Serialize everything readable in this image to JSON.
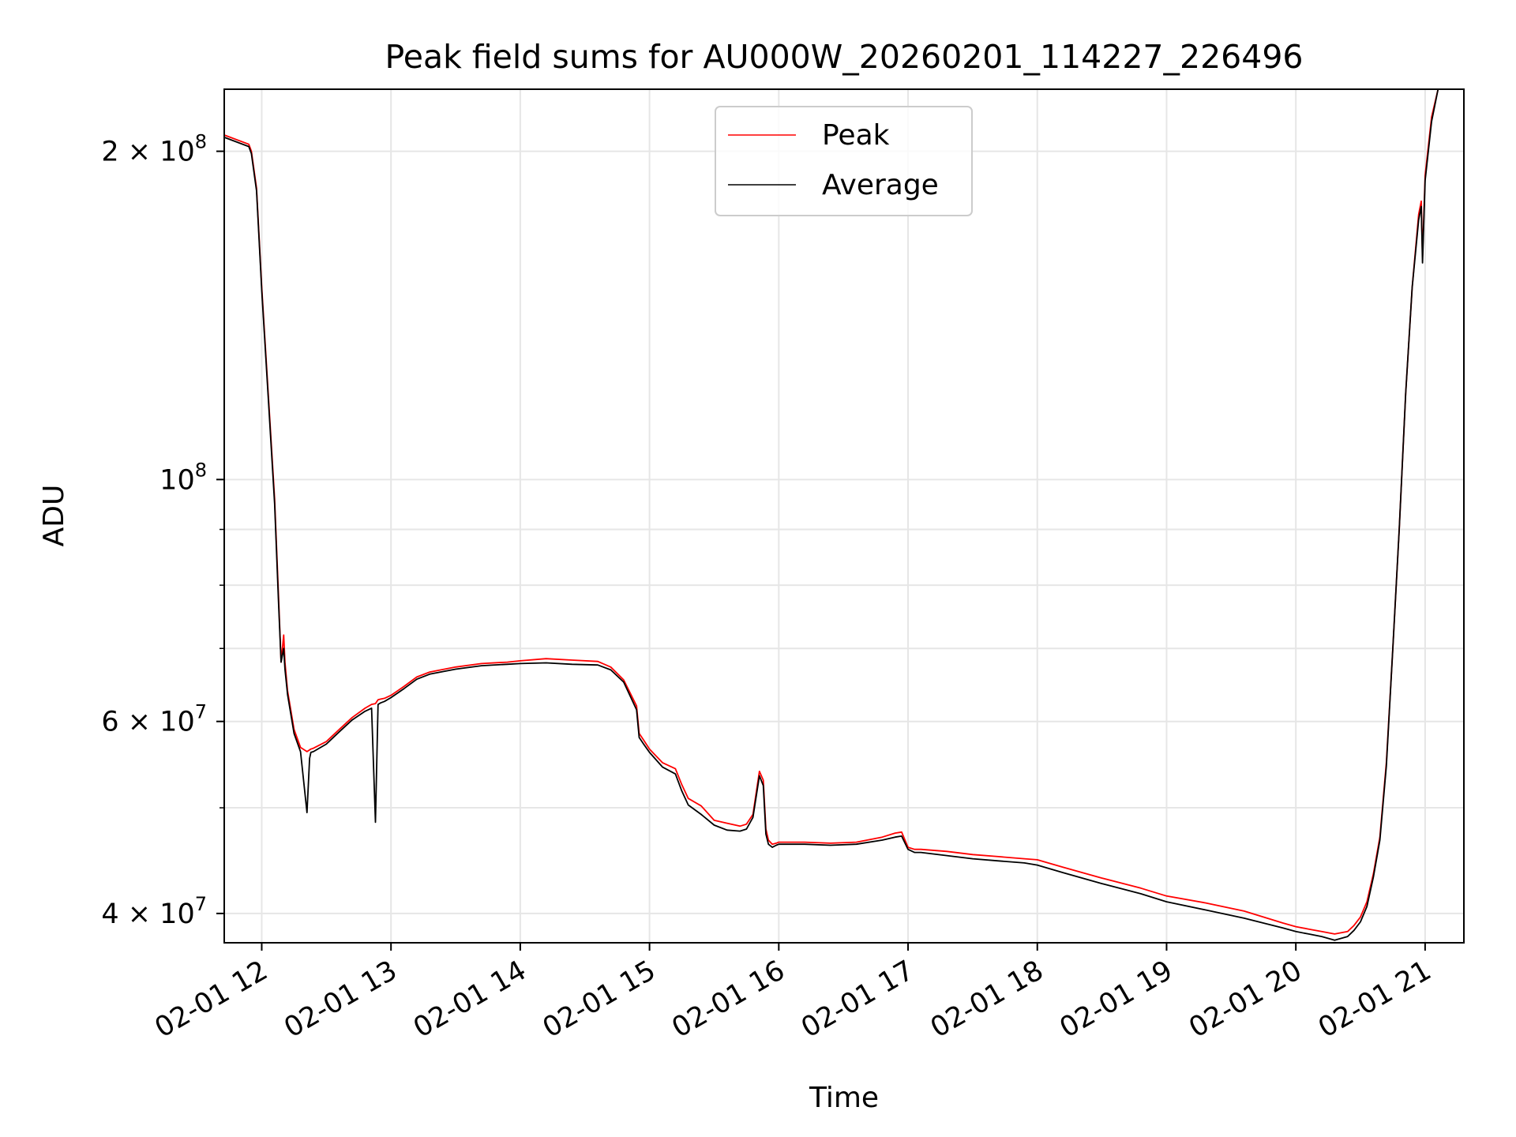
{
  "chart_data": {
    "type": "line",
    "title": "Peak field sums for AU000W_20260201_114227_226496",
    "xlabel": "Time",
    "ylabel": "ADU",
    "yscale": "log",
    "grid": true,
    "legend_placement": "upper center",
    "x_axis": {
      "unit": "hours on 2026-02-01",
      "xlim": [
        11.71,
        21.3
      ],
      "ticks": [
        12,
        13,
        14,
        15,
        16,
        17,
        18,
        19,
        20,
        21
      ],
      "tick_labels": [
        "02-01 12",
        "02-01 13",
        "02-01 14",
        "02-01 15",
        "02-01 16",
        "02-01 17",
        "02-01 18",
        "02-01 19",
        "02-01 20",
        "02-01 21"
      ]
    },
    "y_axis": {
      "ylim": [
        37600000,
        228000000
      ],
      "major_ticks": [
        40000000,
        60000000,
        100000000,
        200000000
      ],
      "major_tick_labels": [
        {
          "base": "4 × 10",
          "exp": "7"
        },
        {
          "base": "6 × 10",
          "exp": "7"
        },
        {
          "base": "10",
          "exp": "8"
        },
        {
          "base": "2 × 10",
          "exp": "8"
        }
      ],
      "minor_ticks": [
        50000000,
        70000000,
        80000000,
        90000000
      ]
    },
    "series": [
      {
        "name": "Peak",
        "color": "#ff0000",
        "x": [
          11.71,
          11.9,
          11.92,
          11.96,
          12.0,
          12.05,
          12.1,
          12.13,
          12.15,
          12.17,
          12.18,
          12.2,
          12.25,
          12.3,
          12.35,
          12.37,
          12.38,
          12.4,
          12.5,
          12.6,
          12.7,
          12.8,
          12.85,
          12.88,
          12.9,
          12.92,
          12.95,
          13.0,
          13.1,
          13.2,
          13.3,
          13.5,
          13.7,
          13.9,
          14.0,
          14.2,
          14.4,
          14.6,
          14.7,
          14.8,
          14.9,
          14.92,
          14.95,
          15.0,
          15.1,
          15.2,
          15.25,
          15.3,
          15.4,
          15.5,
          15.6,
          15.7,
          15.75,
          15.8,
          15.85,
          15.88,
          15.9,
          15.92,
          15.95,
          15.98,
          16.0,
          16.2,
          16.4,
          16.6,
          16.8,
          16.9,
          16.95,
          17.0,
          17.05,
          17.1,
          17.3,
          17.5,
          17.7,
          17.9,
          18.0,
          18.2,
          18.5,
          18.8,
          19.0,
          19.3,
          19.6,
          19.9,
          20.0,
          20.1,
          20.2,
          20.3,
          20.4,
          20.45,
          20.5,
          20.55,
          20.6,
          20.65,
          20.7,
          20.75,
          20.8,
          20.85,
          20.9,
          20.95,
          20.97,
          20.98,
          21.0,
          21.05,
          21.1,
          21.13
        ],
        "y": [
          207000000,
          203000000,
          200000000,
          185000000,
          150000000,
          120000000,
          96000000,
          78000000,
          68000000,
          72000000,
          68000000,
          64000000,
          59000000,
          56800000,
          56300000,
          56500000,
          56600000,
          56700000,
          57500000,
          59000000,
          60500000,
          61700000,
          62200000,
          62300000,
          62800000,
          62900000,
          63000000,
          63400000,
          64600000,
          65900000,
          66600000,
          67300000,
          67800000,
          68000000,
          68200000,
          68500000,
          68300000,
          68100000,
          67300000,
          65500000,
          62000000,
          58500000,
          57800000,
          56600000,
          55000000,
          54300000,
          52500000,
          51000000,
          50200000,
          48700000,
          48400000,
          48100000,
          48300000,
          49300000,
          54000000,
          53000000,
          47800000,
          46700000,
          46300000,
          46400000,
          46500000,
          46500000,
          46400000,
          46500000,
          47000000,
          47400000,
          47500000,
          46000000,
          45800000,
          45800000,
          45600000,
          45300000,
          45100000,
          44900000,
          44800000,
          44100000,
          43100000,
          42200000,
          41500000,
          40900000,
          40200000,
          39200000,
          38900000,
          38700000,
          38500000,
          38300000,
          38500000,
          39000000,
          39700000,
          41000000,
          43500000,
          47000000,
          55000000,
          70000000,
          90000000,
          120000000,
          150000000,
          175000000,
          180000000,
          160000000,
          190000000,
          215000000,
          228000000,
          228000000
        ]
      },
      {
        "name": "Average",
        "color": "#000000",
        "x": [
          11.71,
          11.9,
          11.92,
          11.96,
          12.0,
          12.05,
          12.1,
          12.13,
          12.15,
          12.17,
          12.18,
          12.2,
          12.25,
          12.3,
          12.35,
          12.37,
          12.38,
          12.4,
          12.5,
          12.6,
          12.7,
          12.8,
          12.85,
          12.88,
          12.9,
          12.92,
          12.95,
          13.0,
          13.1,
          13.2,
          13.3,
          13.5,
          13.7,
          13.9,
          14.0,
          14.2,
          14.4,
          14.6,
          14.7,
          14.8,
          14.9,
          14.92,
          14.95,
          15.0,
          15.1,
          15.2,
          15.25,
          15.3,
          15.4,
          15.5,
          15.6,
          15.7,
          15.75,
          15.8,
          15.85,
          15.88,
          15.9,
          15.92,
          15.95,
          15.98,
          16.0,
          16.2,
          16.4,
          16.6,
          16.8,
          16.9,
          16.95,
          17.0,
          17.05,
          17.1,
          17.3,
          17.5,
          17.7,
          17.9,
          18.0,
          18.2,
          18.5,
          18.8,
          19.0,
          19.3,
          19.6,
          19.9,
          20.0,
          20.1,
          20.2,
          20.3,
          20.4,
          20.45,
          20.5,
          20.55,
          20.6,
          20.65,
          20.7,
          20.75,
          20.8,
          20.85,
          20.9,
          20.95,
          20.97,
          20.98,
          21.0,
          21.05,
          21.1,
          21.13
        ],
        "y": [
          206000000,
          202000000,
          199000000,
          184000000,
          149000000,
          119000000,
          95000000,
          77000000,
          68000000,
          70000000,
          67000000,
          63500000,
          58500000,
          56300000,
          49500000,
          55500000,
          56200000,
          56300000,
          57200000,
          58700000,
          60200000,
          61300000,
          61700000,
          48500000,
          62200000,
          62400000,
          62600000,
          63100000,
          64300000,
          65600000,
          66300000,
          67000000,
          67500000,
          67700000,
          67800000,
          67900000,
          67700000,
          67600000,
          66900000,
          65200000,
          61500000,
          58000000,
          57300000,
          56200000,
          54500000,
          53700000,
          51800000,
          50300000,
          49300000,
          48200000,
          47700000,
          47600000,
          47800000,
          49000000,
          53500000,
          52400000,
          47300000,
          46300000,
          46000000,
          46200000,
          46300000,
          46300000,
          46200000,
          46300000,
          46700000,
          47000000,
          47100000,
          45800000,
          45500000,
          45500000,
          45200000,
          44900000,
          44700000,
          44500000,
          44300000,
          43600000,
          42600000,
          41700000,
          41000000,
          40300000,
          39600000,
          38800000,
          38500000,
          38300000,
          38100000,
          37800000,
          38100000,
          38600000,
          39300000,
          40600000,
          43200000,
          46700000,
          54600000,
          70000000,
          90000000,
          120000000,
          150000000,
          173000000,
          178000000,
          158000000,
          188000000,
          213000000,
          228000000,
          228000000
        ]
      }
    ]
  }
}
